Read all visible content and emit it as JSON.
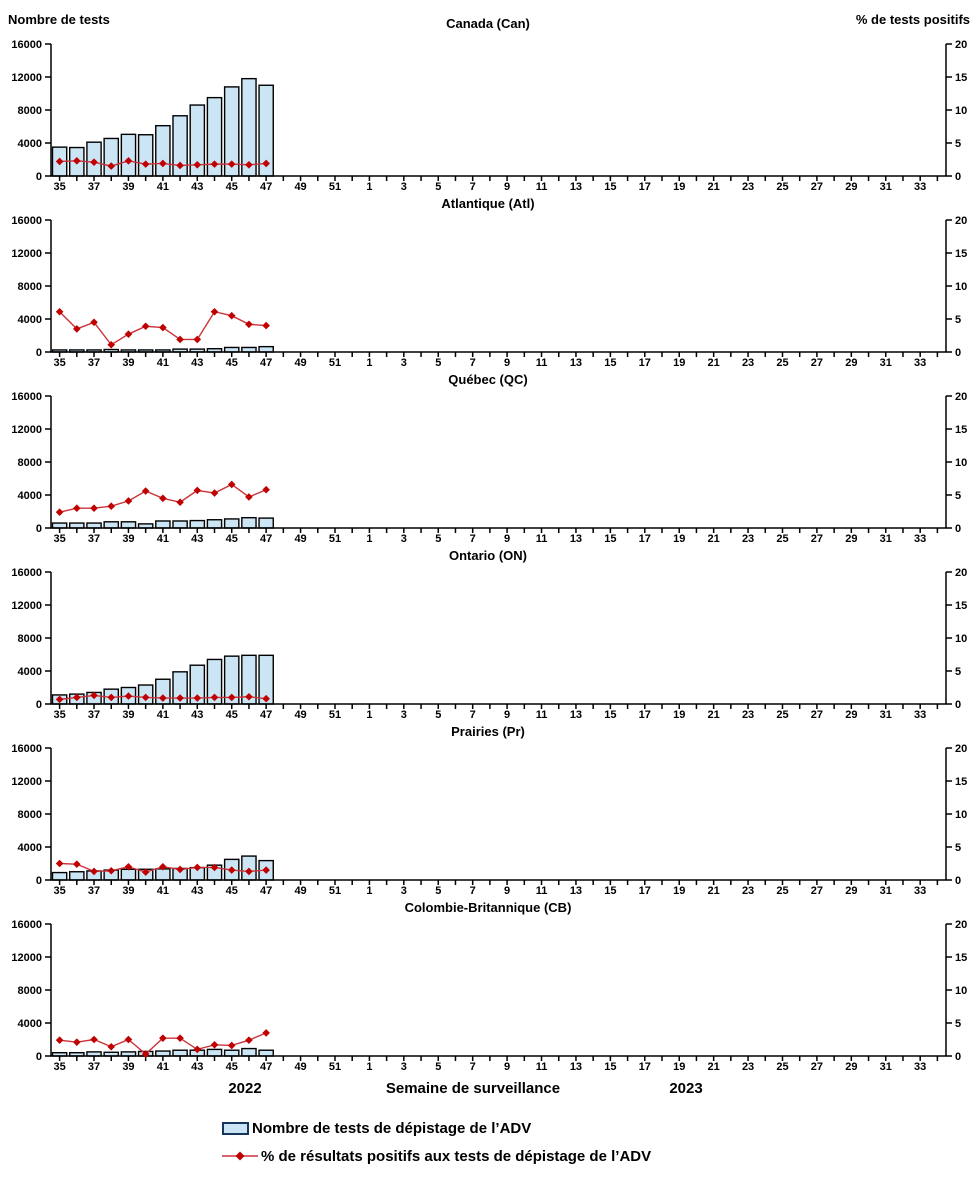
{
  "colors": {
    "bar_fill": "#CBE5F5",
    "bar_stroke": "#000000",
    "line": "#CB333B",
    "marker": "#C00000",
    "axis": "#000000"
  },
  "footer": {
    "year_left": "2022",
    "x_axis_title": "Semaine de surveillance",
    "year_right": "2023"
  },
  "legend": {
    "items": [
      {
        "icon": "bar-swatch",
        "label": "Nombre de tests de dépistage de l’ADV"
      },
      {
        "icon": "line-marker",
        "label": "% de résultats positifs aux tests de dépistage de l’ADV"
      }
    ]
  },
  "chart_data": {
    "type": "bar",
    "subtype": "bar+line combo, small multiples",
    "left_axis": {
      "title": "Nombre de tests",
      "range": [
        0,
        16000
      ],
      "ticks": [
        0,
        4000,
        8000,
        12000,
        16000
      ]
    },
    "right_axis": {
      "title": "% de tests positifs",
      "range": [
        0,
        20
      ],
      "ticks": [
        0,
        5,
        10,
        15,
        20
      ]
    },
    "x_weeks": [
      35,
      36,
      37,
      38,
      39,
      40,
      41,
      42,
      43,
      44,
      45,
      46,
      47,
      48,
      49,
      50,
      51,
      52,
      1,
      2,
      3,
      4,
      5,
      6,
      7,
      8,
      9,
      10,
      11,
      12,
      13,
      14,
      15,
      16,
      17,
      18,
      19,
      20,
      21,
      22,
      23,
      24,
      25,
      26,
      27,
      28,
      29,
      30,
      31,
      32,
      33,
      34
    ],
    "x_labeled_weeks": [
      35,
      37,
      39,
      41,
      43,
      45,
      47,
      49,
      51,
      1,
      3,
      5,
      7,
      9,
      11,
      13,
      15,
      17,
      19,
      21,
      23,
      25,
      27,
      29,
      31,
      33
    ],
    "data_weeks": [
      35,
      36,
      37,
      38,
      39,
      40,
      41,
      42,
      43,
      44,
      45,
      46,
      47
    ],
    "panels": [
      {
        "title": "Canada (Can)",
        "tests": [
          3500,
          3450,
          4100,
          4550,
          5050,
          5000,
          6100,
          7300,
          8600,
          9500,
          10800,
          11800,
          11000
        ],
        "pct_positive": [
          2.2,
          2.3,
          2.1,
          1.5,
          2.3,
          1.8,
          1.9,
          1.6,
          1.7,
          1.8,
          1.8,
          1.7,
          1.9
        ]
      },
      {
        "title": "Atlantique (Atl)",
        "tests": [
          250,
          250,
          250,
          300,
          250,
          250,
          250,
          350,
          350,
          400,
          550,
          550,
          650
        ],
        "pct_positive": [
          6.1,
          3.5,
          4.5,
          1.1,
          2.7,
          3.9,
          3.7,
          1.9,
          1.9,
          6.1,
          5.5,
          4.2,
          4.0
        ]
      },
      {
        "title": "Québec (QC)",
        "tests": [
          600,
          600,
          600,
          750,
          750,
          500,
          850,
          850,
          900,
          1000,
          1100,
          1250,
          1200
        ],
        "pct_positive": [
          2.4,
          3.0,
          3.0,
          3.3,
          4.1,
          5.6,
          4.5,
          3.9,
          5.7,
          5.3,
          6.6,
          4.7,
          5.8
        ]
      },
      {
        "title": "Ontario (ON)",
        "tests": [
          1100,
          1200,
          1400,
          1800,
          2000,
          2300,
          3000,
          3900,
          4700,
          5400,
          5800,
          5900,
          5900
        ],
        "pct_positive": [
          0.7,
          1.0,
          1.3,
          1.0,
          1.2,
          1.0,
          0.9,
          0.9,
          0.9,
          1.0,
          1.0,
          1.1,
          0.8
        ]
      },
      {
        "title": "Prairies (Pr)",
        "tests": [
          900,
          1000,
          1100,
          1200,
          1300,
          1300,
          1350,
          1400,
          1500,
          1800,
          2500,
          2900,
          2350
        ],
        "pct_positive": [
          2.5,
          2.4,
          1.3,
          1.4,
          2.0,
          1.2,
          2.0,
          1.6,
          1.9,
          1.9,
          1.5,
          1.3,
          1.5
        ]
      },
      {
        "title": "Colombie-Britannique (CB)",
        "tests": [
          400,
          400,
          500,
          450,
          500,
          550,
          600,
          700,
          700,
          800,
          700,
          900,
          700
        ],
        "pct_positive": [
          2.4,
          2.1,
          2.5,
          1.4,
          2.5,
          0.3,
          2.7,
          2.7,
          1.0,
          1.7,
          1.6,
          2.4,
          3.5
        ]
      }
    ]
  }
}
